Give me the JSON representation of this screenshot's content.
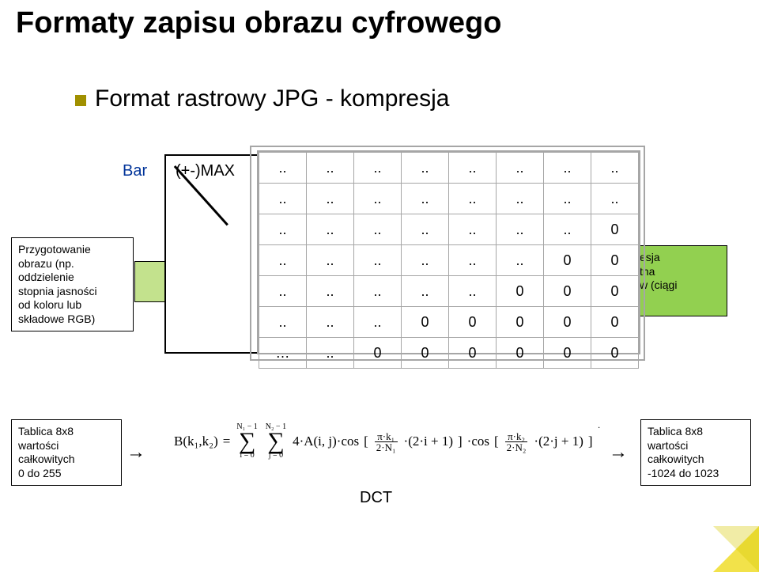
{
  "title": "Formaty zapisu obrazu cyfrowego",
  "subtitle": "Format rastrowy JPG - kompresja",
  "bar_label": "Bar",
  "max_label": "(+-)MAX",
  "left_box": {
    "l1": "Przygotowanie",
    "l2": "obrazu (np.",
    "l3": "oddzielenie",
    "l4": "stopnia jasności",
    "l5": "od koloru lub",
    "l6": "składowe RGB)"
  },
  "right_box": {
    "l1": "esja",
    "l2": "tna",
    "l3": "w (ciągi"
  },
  "table": {
    "type": "grid",
    "cols": 8,
    "rows": 7,
    "cell_border": "#a6a6a6",
    "font_size": 18,
    "rowsData": [
      [
        "..",
        "..",
        "..",
        "..",
        "..",
        "..",
        "..",
        ".."
      ],
      [
        "..",
        "..",
        "..",
        "..",
        "..",
        "..",
        "..",
        ".."
      ],
      [
        "..",
        "..",
        "..",
        "..",
        "..",
        "..",
        "..",
        "0"
      ],
      [
        "..",
        "..",
        "..",
        "..",
        "..",
        "..",
        "0",
        "0"
      ],
      [
        "..",
        "..",
        "..",
        "..",
        "..",
        "0",
        "0",
        "0"
      ],
      [
        "..",
        "..",
        "..",
        "0",
        "0",
        "0",
        "0",
        "0"
      ],
      [
        "…",
        "..",
        "0",
        "0",
        "0",
        "0",
        "0",
        "0"
      ]
    ]
  },
  "bottom_left": {
    "l1": "Tablica 8x8",
    "l2": "wartości",
    "l3": "całkowitych",
    "l4": "0 do 255"
  },
  "bottom_right": {
    "l1": "Tablica 8x8",
    "l2": "wartości",
    "l3": "całkowitych",
    "l4": "-1024 do 1023"
  },
  "dct_label": "DCT",
  "formula": {
    "B": "B(k₁,k₂)",
    "eq": "=",
    "sum1_top": "N₁ − 1",
    "sum1_bot": "i = 0",
    "sum2_top": "N₂ − 1",
    "sum2_bot": "j = 0",
    "coef": "4·A(i, j)·cos",
    "f1_top": "π·k₁",
    "f1_bot": "2·N₁",
    "t1": "·(2·i + 1)",
    "cos2": "·cos",
    "f2_top": "π·k₂",
    "f2_bot": "2·N₂",
    "t2": "·(2·j + 1)",
    "tail": "·"
  },
  "colors": {
    "green_box": "#92d050",
    "green_strip": "#c3e28d",
    "grid_border": "#a6a6a6",
    "corner": "#f2e24a",
    "blue_text": "#003399"
  }
}
